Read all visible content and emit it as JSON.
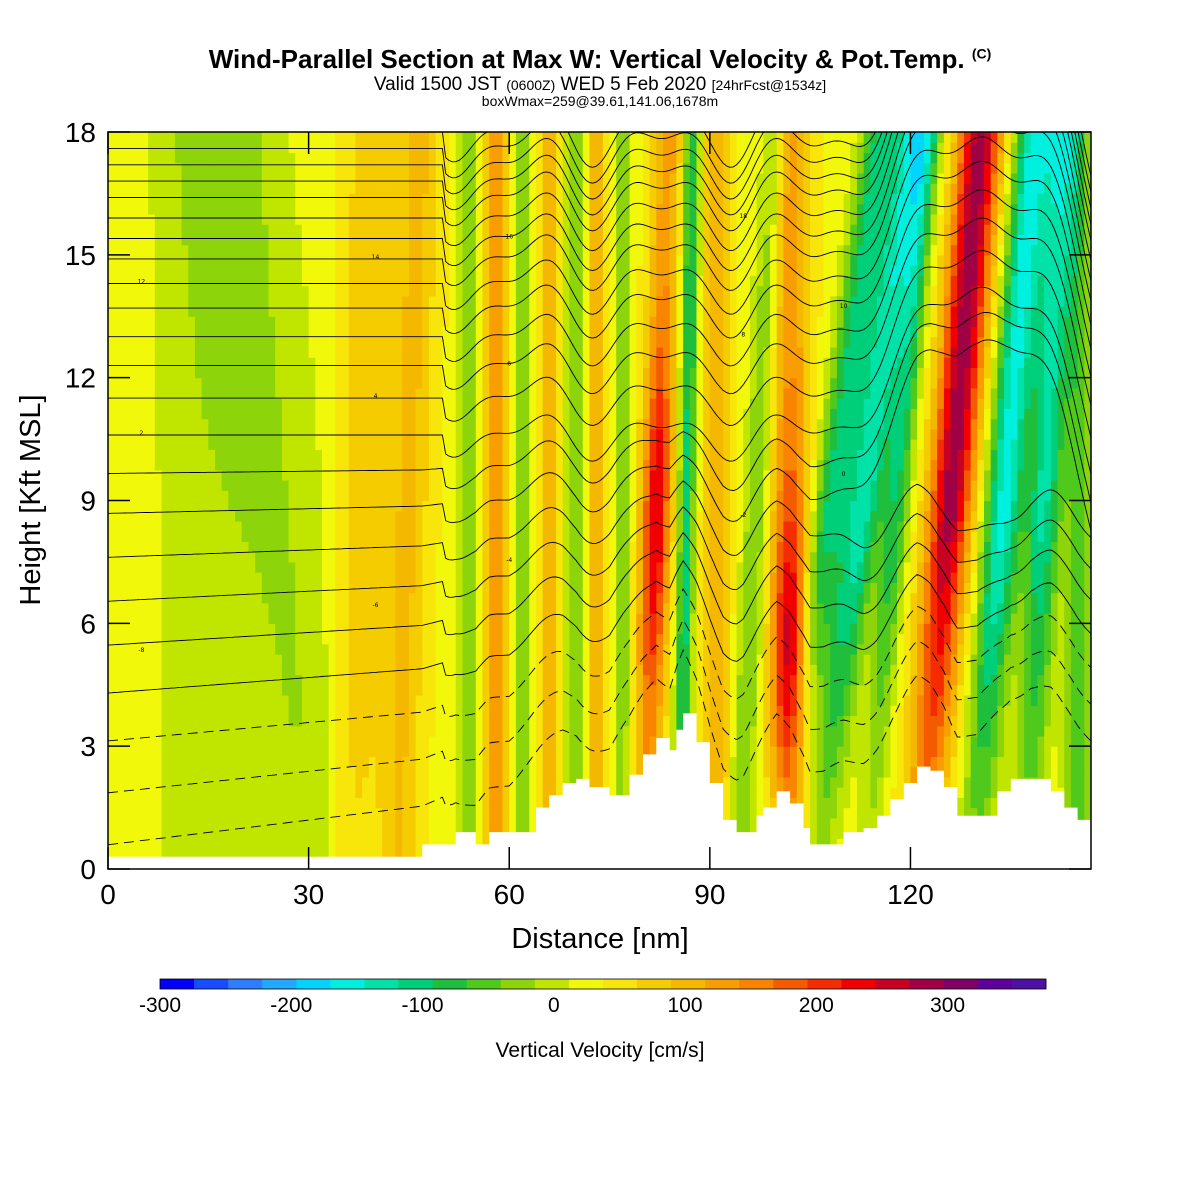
{
  "chart_data": {
    "type": "heatmap",
    "title": "Wind-Parallel Section at Max W: Vertical Velocity & Pot.Temp.",
    "title_mark": "(C)",
    "subtitle_main_a": "Valid 1500 JST",
    "subtitle_utc": "(0600Z)",
    "subtitle_main_b": "WED 5 Feb 2020",
    "subtitle_fcst": "[24hrFcst@1534z]",
    "subtitle2": "boxWmax=259@39.61,141.06,1678m",
    "xlabel": "Distance [nm]",
    "ylabel": "Height [Kft MSL]",
    "xlim": [
      0,
      147
    ],
    "ylim": [
      0,
      18
    ],
    "x_ticks": [
      "0",
      "30",
      "60",
      "90",
      "120"
    ],
    "y_ticks": [
      "0",
      "3",
      "6",
      "9",
      "12",
      "15",
      "18"
    ],
    "colorbar": {
      "label": "Vertical Velocity [cm/s]",
      "range": [
        -300,
        375
      ],
      "step": 25,
      "tick_labels": [
        "-300",
        "-200",
        "-100",
        "0",
        "100",
        "200",
        "300"
      ],
      "colors": [
        "#0000ff",
        "#1a4cff",
        "#2e7dff",
        "#23a7ff",
        "#00d4ff",
        "#00f0e0",
        "#00e2a8",
        "#00cf7a",
        "#1fbe3c",
        "#4fc91c",
        "#8ed40a",
        "#c0e600",
        "#f2f80a",
        "#f8e60a",
        "#f4cc00",
        "#f4b800",
        "#f89e00",
        "#f88400",
        "#f45a00",
        "#f42c00",
        "#f00000",
        "#c80024",
        "#a00044",
        "#800064",
        "#60009c",
        "#5010a4"
      ]
    },
    "velocity_bands": [
      {
        "x_center": 3,
        "w": 10,
        "tilt": 0,
        "peak": 0
      },
      {
        "x_center": 13,
        "w": 8,
        "tilt": 0,
        "peak": -30
      },
      {
        "x_center": 25,
        "w": 9,
        "tilt": -0.7,
        "peak": -45
      },
      {
        "x_center": 38,
        "w": 4,
        "tilt": 0.2,
        "peak": 55
      },
      {
        "x_center": 45,
        "w": 3,
        "tilt": 0.2,
        "peak": 60
      },
      {
        "x_center": 54,
        "w": 1.5,
        "tilt": 0,
        "peak": -75
      },
      {
        "x_center": 58,
        "w": 1.6,
        "tilt": 0,
        "peak": 90
      },
      {
        "x_center": 62,
        "w": 1.4,
        "tilt": 0,
        "peak": -60
      },
      {
        "x_center": 66,
        "w": 1.5,
        "tilt": 0,
        "peak": 75
      },
      {
        "x_center": 70,
        "w": 1.5,
        "tilt": 0,
        "peak": -75
      },
      {
        "x_center": 73,
        "w": 1.5,
        "tilt": 0,
        "peak": 70
      },
      {
        "x_center": 77,
        "w": 1.3,
        "tilt": 0,
        "peak": -65
      },
      {
        "x_center": 82,
        "w": 2.2,
        "tilt": 0.2,
        "peak": 210
      },
      {
        "x_center": 86.5,
        "w": 1.3,
        "tilt": 0.1,
        "peak": -130
      },
      {
        "x_center": 91,
        "w": 2,
        "tilt": 0,
        "peak": 80
      },
      {
        "x_center": 97,
        "w": 2,
        "tilt": 0.3,
        "peak": -70
      },
      {
        "x_center": 102,
        "w": 2.8,
        "tilt": 0,
        "peak": 230
      },
      {
        "x_center": 108,
        "w": 2.6,
        "tilt": 0.8,
        "peak": -120
      },
      {
        "x_center": 113,
        "w": 3,
        "tilt": 0.8,
        "peak": -160
      },
      {
        "x_center": 118,
        "w": 2,
        "tilt": 0.5,
        "peak": -110
      },
      {
        "x_center": 126,
        "w": 3.2,
        "tilt": 0.5,
        "peak": 250
      },
      {
        "x_center": 134,
        "w": 2.8,
        "tilt": 0.5,
        "peak": -180
      },
      {
        "x_center": 140,
        "w": 2.6,
        "tilt": 0.3,
        "peak": -150
      },
      {
        "x_center": 145,
        "w": 2,
        "tilt": 0,
        "peak": -80
      }
    ],
    "terrain": {
      "x": [
        0,
        47,
        52,
        55,
        57,
        60,
        64,
        66,
        68,
        70,
        72,
        75,
        78,
        80,
        82,
        84,
        85,
        86,
        88,
        90,
        92,
        94,
        95,
        97,
        98,
        100,
        102,
        104,
        105,
        107,
        110,
        113,
        115,
        117,
        119,
        121,
        123,
        125,
        127,
        130,
        133,
        135,
        138,
        141,
        143,
        145,
        147
      ],
      "height_kft": [
        0.3,
        0.6,
        0.9,
        0.6,
        0.9,
        0.9,
        1.5,
        1.8,
        2.1,
        2.2,
        2.0,
        1.8,
        2.3,
        2.8,
        3.2,
        2.9,
        3.4,
        3.8,
        3.1,
        2.1,
        1.2,
        0.9,
        0.9,
        1.3,
        1.5,
        1.9,
        1.6,
        1.0,
        0.6,
        0.6,
        0.9,
        1.0,
        1.3,
        1.7,
        2.1,
        2.5,
        2.4,
        2.0,
        1.3,
        1.3,
        1.9,
        2.2,
        2.2,
        1.9,
        1.5,
        1.2,
        1.0
      ]
    },
    "theta_contours": {
      "base_heights_kft": [
        0.3,
        1.6,
        2.9,
        4.1,
        5.3,
        6.4,
        7.5,
        8.6,
        9.6,
        10.6,
        11.5,
        12.3,
        13.0,
        13.7,
        14.3,
        14.9,
        15.4,
        15.9,
        16.4,
        16.8,
        17.2,
        17.6,
        18.0
      ],
      "label_values": [
        "-8",
        "-6",
        "-4",
        "-2",
        "0",
        "2",
        "4",
        "6",
        "8",
        "10",
        "12",
        "14",
        "16",
        "18"
      ]
    }
  }
}
